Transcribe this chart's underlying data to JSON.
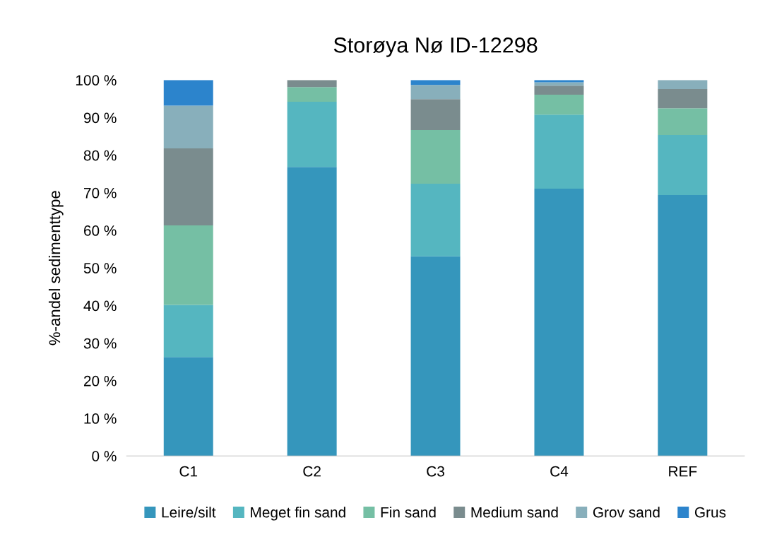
{
  "chart_data": {
    "type": "bar",
    "title": "Storøya Nø ID-12298",
    "ylabel": "%-andel sedimenttype",
    "categories": [
      "C1",
      "C2",
      "C3",
      "C4",
      "REF"
    ],
    "stacked": true,
    "series": [
      {
        "name": "Leire/silt",
        "color": "#3596bc",
        "values": [
          26.3,
          76.9,
          53.1,
          71.1,
          69.4
        ]
      },
      {
        "name": "Meget fin sand",
        "color": "#55b6c0",
        "values": [
          13.9,
          17.3,
          19.3,
          19.7,
          16.0
        ]
      },
      {
        "name": "Fin sand",
        "color": "#75bfa4",
        "values": [
          21.1,
          3.9,
          14.3,
          5.3,
          7.1
        ]
      },
      {
        "name": "Medium sand",
        "color": "#7a8c8e",
        "values": [
          20.5,
          1.9,
          8.2,
          2.4,
          5.1
        ]
      },
      {
        "name": "Grov sand",
        "color": "#88afbb",
        "values": [
          11.4,
          0,
          3.8,
          0.9,
          2.4
        ]
      },
      {
        "name": "Grus",
        "color": "#2c84cc",
        "values": [
          6.8,
          0,
          1.3,
          0.6,
          0
        ]
      }
    ],
    "ylim": [
      0,
      100
    ],
    "yticks": [
      {
        "value": 0,
        "label": "0 %"
      },
      {
        "value": 10,
        "label": "10 %"
      },
      {
        "value": 20,
        "label": "20 %"
      },
      {
        "value": 30,
        "label": "30 %"
      },
      {
        "value": 40,
        "label": "40 %"
      },
      {
        "value": 50,
        "label": "50 %"
      },
      {
        "value": 60,
        "label": "60 %"
      },
      {
        "value": 70,
        "label": "70 %"
      },
      {
        "value": 80,
        "label": "80 %"
      },
      {
        "value": 90,
        "label": "90 %"
      },
      {
        "value": 100,
        "label": "100 %"
      }
    ],
    "grid": false,
    "legend": "bottom"
  }
}
